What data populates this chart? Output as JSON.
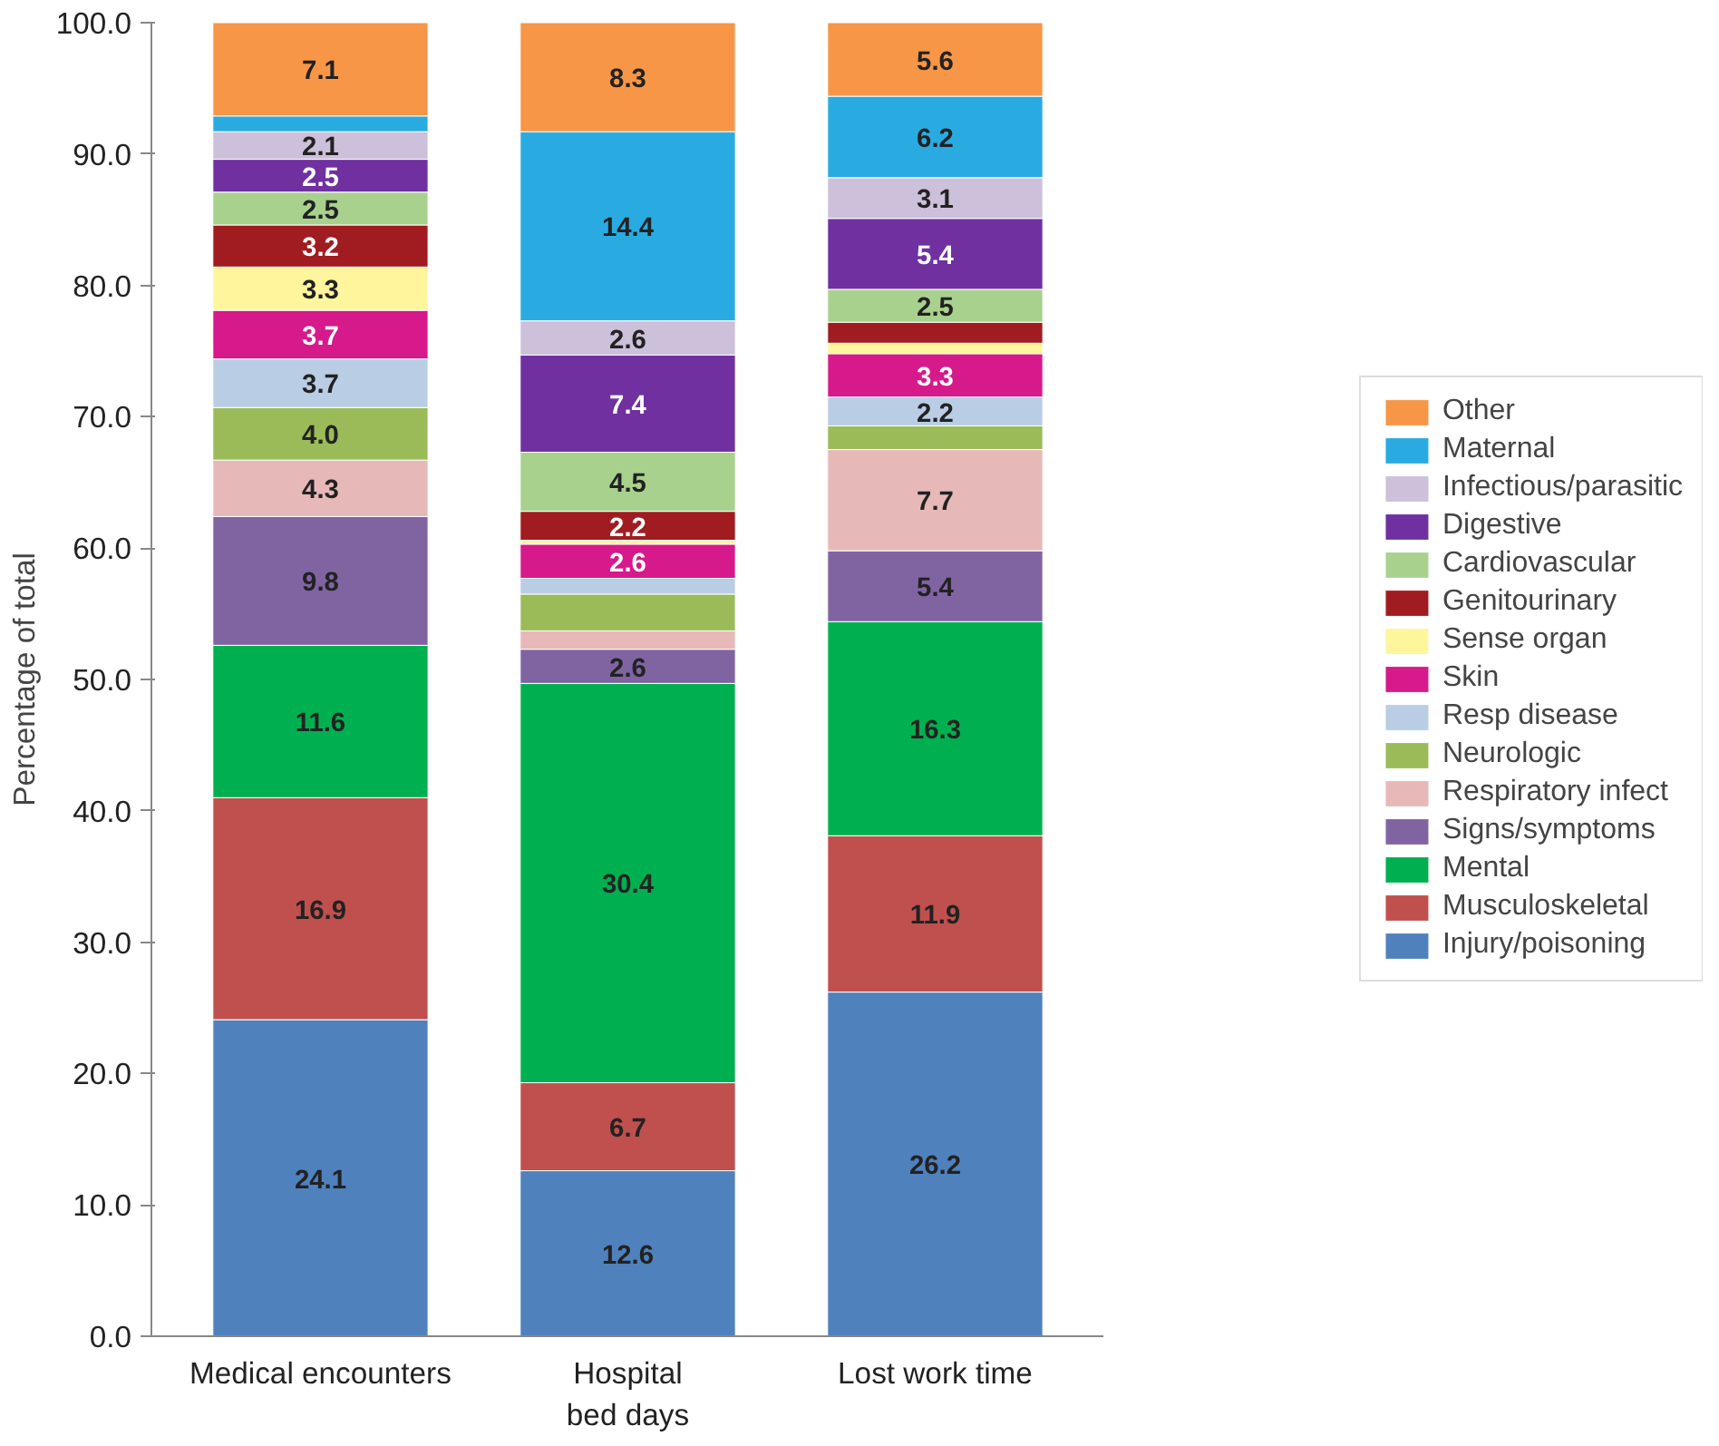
{
  "chart_data": {
    "type": "bar",
    "stacked": true,
    "ylabel": "Percentage of total",
    "categories": [
      "Medical encounters",
      "Hospital\nbed days",
      "Lost work time"
    ],
    "ylim": [
      0,
      100
    ],
    "yticks": [
      {
        "value": 0,
        "label": "0.0"
      },
      {
        "value": 10,
        "label": "10.0"
      },
      {
        "value": 20,
        "label": "20.0"
      },
      {
        "value": 30,
        "label": "30.0"
      },
      {
        "value": 40,
        "label": "40.0"
      },
      {
        "value": 50,
        "label": "50.0"
      },
      {
        "value": 60,
        "label": "60.0"
      },
      {
        "value": 70,
        "label": "70.0"
      },
      {
        "value": 80,
        "label": "80.0"
      },
      {
        "value": 90,
        "label": "90.0"
      },
      {
        "value": 100,
        "label": "100.0"
      }
    ],
    "grid": false,
    "legend": "right",
    "series": [
      {
        "name": "Injury/poisoning",
        "color": "#4f81bd",
        "values": [
          24.1,
          12.6,
          26.2
        ],
        "value_labels": [
          "24.1",
          "12.6",
          "26.2"
        ]
      },
      {
        "name": "Musculoskeletal",
        "color": "#c0504d",
        "values": [
          16.9,
          6.7,
          11.9
        ],
        "value_labels": [
          "16.9",
          "6.7",
          "11.9"
        ]
      },
      {
        "name": "Mental",
        "color": "#00b050",
        "values": [
          11.6,
          30.4,
          16.3
        ],
        "value_labels": [
          "11.6",
          "30.4",
          "16.3"
        ]
      },
      {
        "name": "Signs/symptoms",
        "color": "#8064a2",
        "values": [
          9.8,
          2.6,
          5.4
        ],
        "value_labels": [
          "9.8",
          "2.6",
          "5.4"
        ]
      },
      {
        "name": "Respiratory infect",
        "color": "#e6b9b8",
        "values": [
          4.3,
          1.4,
          7.7
        ],
        "value_labels": [
          "4.3",
          null,
          "7.7"
        ]
      },
      {
        "name": "Neurologic",
        "color": "#9bbb59",
        "values": [
          4.0,
          2.8,
          1.8
        ],
        "value_labels": [
          "4.0",
          null,
          null
        ]
      },
      {
        "name": "Resp disease",
        "color": "#b9cde5",
        "values": [
          3.7,
          1.2,
          2.2
        ],
        "value_labels": [
          "3.7",
          null,
          "2.2"
        ]
      },
      {
        "name": "Skin",
        "color": "#d6198b",
        "values": [
          3.7,
          2.6,
          3.3
        ],
        "value_labels": [
          "3.7",
          "2.6",
          "3.3"
        ]
      },
      {
        "name": "Sense organ",
        "color": "#fff59d",
        "values": [
          3.3,
          0.3,
          0.8
        ],
        "value_labels": [
          "3.3",
          null,
          null
        ]
      },
      {
        "name": "Genitourinary",
        "color": "#a01c20",
        "values": [
          3.2,
          2.2,
          1.6
        ],
        "value_labels": [
          "3.2",
          "2.2",
          null
        ]
      },
      {
        "name": "Cardiovascular",
        "color": "#a9d18e",
        "values": [
          2.5,
          4.5,
          2.5
        ],
        "value_labels": [
          "2.5",
          "4.5",
          "2.5"
        ]
      },
      {
        "name": "Digestive",
        "color": "#7030a0",
        "values": [
          2.5,
          7.4,
          5.4
        ],
        "value_labels": [
          "2.5",
          "7.4",
          "5.4"
        ]
      },
      {
        "name": "Infectious/parasitic",
        "color": "#ccc0da",
        "values": [
          2.1,
          2.6,
          3.1
        ],
        "value_labels": [
          "2.1",
          "2.6",
          "3.1"
        ]
      },
      {
        "name": "Maternal",
        "color": "#29abe2",
        "values": [
          1.2,
          14.4,
          6.2
        ],
        "value_labels": [
          null,
          "14.4",
          "6.2"
        ]
      },
      {
        "name": "Other",
        "color": "#f79646",
        "values": [
          7.1,
          8.3,
          5.6
        ],
        "value_labels": [
          "7.1",
          "8.3",
          "5.6"
        ]
      }
    ]
  }
}
